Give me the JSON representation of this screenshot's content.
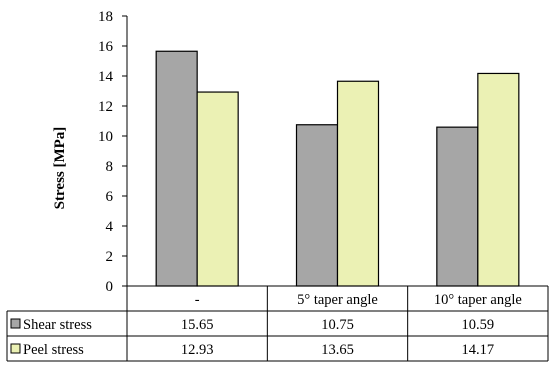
{
  "chart_data": {
    "type": "bar",
    "title": "",
    "xlabel": "",
    "ylabel": "Stress [MPa]",
    "ylim": [
      0,
      18
    ],
    "yticks": [
      0,
      2,
      4,
      6,
      8,
      10,
      12,
      14,
      16,
      18
    ],
    "grid": false,
    "legend": "data-table",
    "categories": [
      "-",
      "5° taper angle",
      "10° taper angle"
    ],
    "series": [
      {
        "name": "Shear stress",
        "values": [
          15.65,
          10.75,
          10.59
        ],
        "labels": [
          "15.65",
          "10.75",
          "10.59"
        ],
        "color": "#a6a6a6"
      },
      {
        "name": "Peel stress",
        "values": [
          12.93,
          13.65,
          14.17
        ],
        "labels": [
          "12.93",
          "13.65",
          "14.17"
        ],
        "color": "#ebf1b4"
      }
    ]
  }
}
